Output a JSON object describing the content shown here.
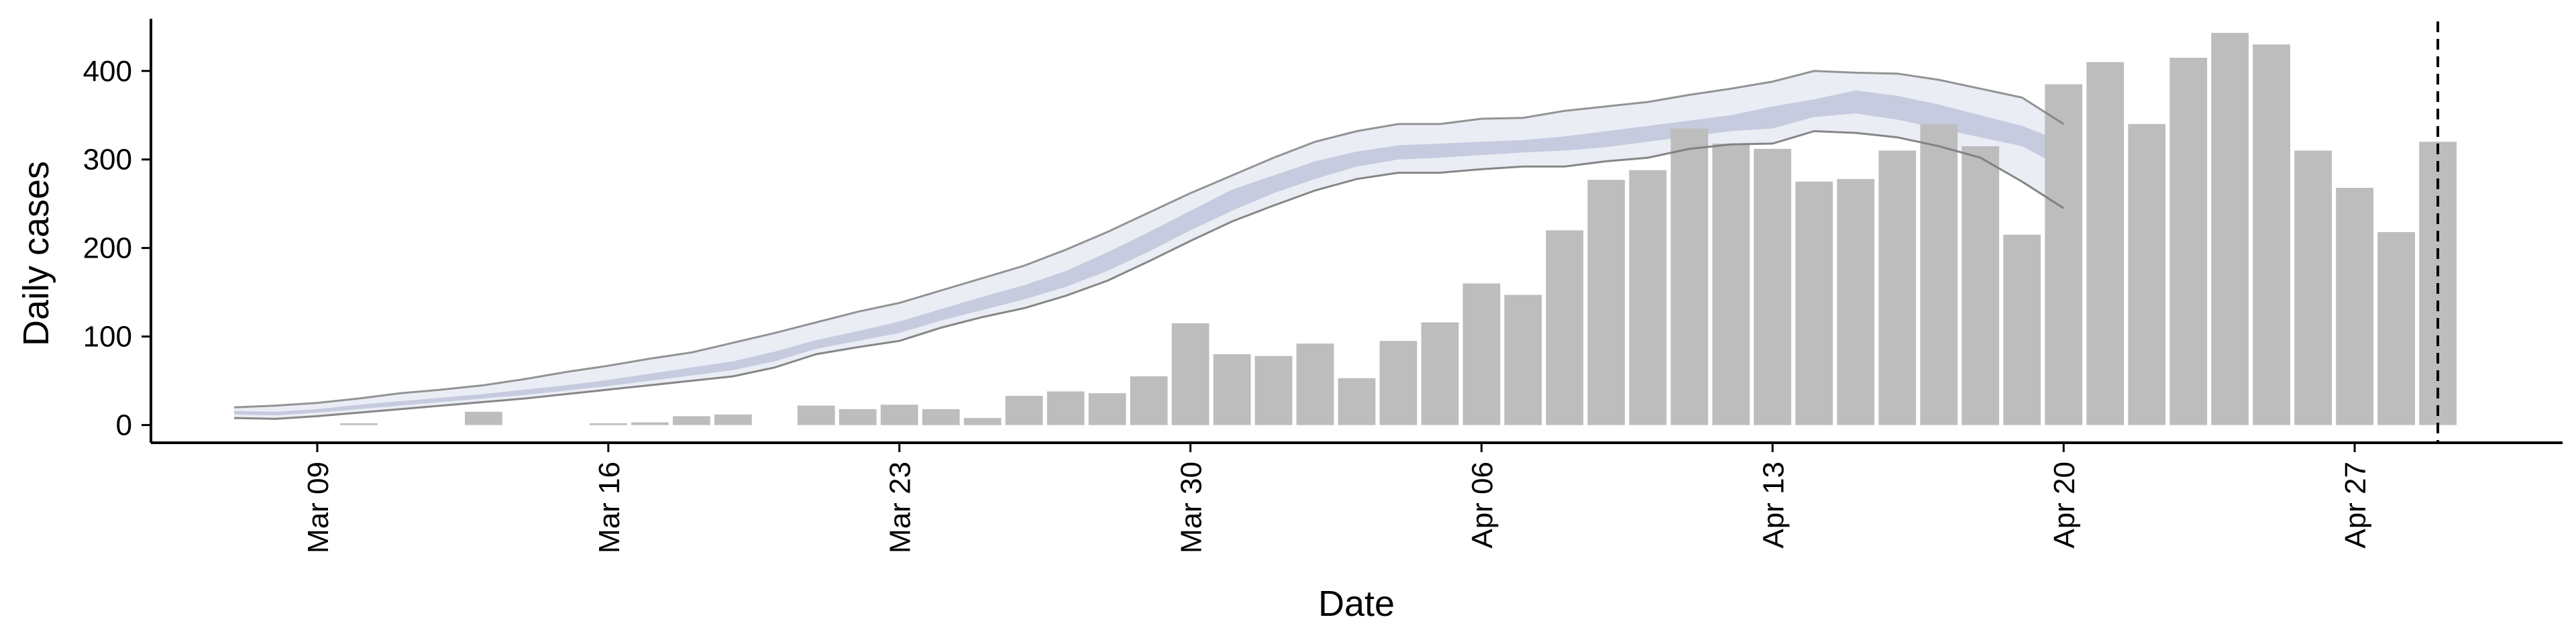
{
  "chart_data": {
    "type": "bar",
    "title": "",
    "xlabel": "Date",
    "ylabel": "Daily cases",
    "ylim": [
      -20,
      465
    ],
    "yticks": [
      0,
      100,
      200,
      300,
      400
    ],
    "x_tick_labels": [
      "Mar 09",
      "Mar 16",
      "Mar 23",
      "Mar 30",
      "Apr 06",
      "Apr 13",
      "Apr 20",
      "Apr 27"
    ],
    "x_tick_dates": [
      "2020-03-09",
      "2020-03-16",
      "2020-03-23",
      "2020-03-30",
      "2020-04-06",
      "2020-04-13",
      "2020-04-20",
      "2020-04-27"
    ],
    "x_range": [
      "2020-03-05",
      "2020-05-02"
    ],
    "vertical_line_date": "2020-04-29",
    "grid": false,
    "colors": {
      "bars": "#bdbdbd",
      "inner_band": "#c6cbdf",
      "outer_band": "#ebedf5",
      "band_edge": "#7a7a7a",
      "reference_line": "#000000"
    },
    "bars": {
      "dates": [
        "2020-03-08",
        "2020-03-09",
        "2020-03-10",
        "2020-03-11",
        "2020-03-12",
        "2020-03-13",
        "2020-03-14",
        "2020-03-15",
        "2020-03-16",
        "2020-03-17",
        "2020-03-18",
        "2020-03-19",
        "2020-03-20",
        "2020-03-21",
        "2020-03-22",
        "2020-03-23",
        "2020-03-24",
        "2020-03-25",
        "2020-03-26",
        "2020-03-27",
        "2020-03-28",
        "2020-03-29",
        "2020-03-30",
        "2020-03-31",
        "2020-04-01",
        "2020-04-02",
        "2020-04-03",
        "2020-04-04",
        "2020-04-05",
        "2020-04-06",
        "2020-04-07",
        "2020-04-08",
        "2020-04-09",
        "2020-04-10",
        "2020-04-11",
        "2020-04-12",
        "2020-04-13",
        "2020-04-14",
        "2020-04-15",
        "2020-04-16",
        "2020-04-17",
        "2020-04-18",
        "2020-04-19",
        "2020-04-20",
        "2020-04-21",
        "2020-04-22",
        "2020-04-23",
        "2020-04-24",
        "2020-04-25",
        "2020-04-26",
        "2020-04-27",
        "2020-04-28",
        "2020-04-29"
      ],
      "values": [
        0,
        0,
        2,
        0,
        0,
        15,
        0,
        0,
        2,
        3,
        10,
        12,
        0,
        22,
        18,
        23,
        18,
        8,
        33,
        38,
        36,
        55,
        115,
        80,
        78,
        92,
        53,
        95,
        116,
        160,
        147,
        220,
        277,
        288,
        335,
        318,
        312,
        275,
        278,
        310,
        340,
        315,
        215,
        385,
        410,
        340,
        415,
        443,
        430,
        310,
        268,
        218,
        320
      ]
    },
    "band": {
      "dates": [
        "2020-03-07",
        "2020-03-08",
        "2020-03-09",
        "2020-03-10",
        "2020-03-11",
        "2020-03-12",
        "2020-03-13",
        "2020-03-14",
        "2020-03-15",
        "2020-03-16",
        "2020-03-17",
        "2020-03-18",
        "2020-03-19",
        "2020-03-20",
        "2020-03-21",
        "2020-03-22",
        "2020-03-23",
        "2020-03-24",
        "2020-03-25",
        "2020-03-26",
        "2020-03-27",
        "2020-03-28",
        "2020-03-29",
        "2020-03-30",
        "2020-03-31",
        "2020-04-01",
        "2020-04-02",
        "2020-04-03",
        "2020-04-04",
        "2020-04-05",
        "2020-04-06",
        "2020-04-07",
        "2020-04-08",
        "2020-04-09",
        "2020-04-10",
        "2020-04-11",
        "2020-04-12",
        "2020-04-13",
        "2020-04-14",
        "2020-04-15",
        "2020-04-16",
        "2020-04-17",
        "2020-04-18",
        "2020-04-19",
        "2020-04-20"
      ],
      "outer_lower": [
        8,
        7,
        10,
        14,
        18,
        22,
        26,
        30,
        35,
        40,
        45,
        50,
        55,
        65,
        80,
        88,
        95,
        110,
        122,
        132,
        146,
        163,
        185,
        208,
        230,
        248,
        265,
        278,
        285,
        285,
        289,
        292,
        292,
        298,
        302,
        312,
        317,
        318,
        332,
        330,
        325,
        315,
        302,
        275,
        245
      ],
      "inner_lower": [
        12,
        11,
        14,
        18,
        22,
        26,
        30,
        34,
        39,
        44,
        50,
        56,
        62,
        72,
        86,
        95,
        104,
        118,
        130,
        142,
        156,
        174,
        196,
        220,
        242,
        262,
        278,
        292,
        300,
        302,
        305,
        308,
        310,
        314,
        320,
        326,
        332,
        335,
        348,
        352,
        345,
        335,
        325,
        315,
        290
      ],
      "inner_upper": [
        16,
        15,
        18,
        23,
        27,
        31,
        35,
        40,
        45,
        51,
        58,
        65,
        72,
        83,
        96,
        106,
        117,
        131,
        145,
        158,
        174,
        195,
        218,
        242,
        266,
        282,
        298,
        309,
        316,
        318,
        320,
        322,
        326,
        332,
        338,
        344,
        350,
        360,
        368,
        378,
        372,
        362,
        350,
        338,
        320
      ],
      "outer_upper": [
        20,
        22,
        25,
        30,
        36,
        40,
        45,
        52,
        60,
        67,
        75,
        82,
        93,
        104,
        116,
        128,
        138,
        152,
        166,
        180,
        198,
        218,
        240,
        262,
        282,
        302,
        320,
        332,
        340,
        340,
        346,
        347,
        355,
        360,
        365,
        373,
        380,
        388,
        400,
        398,
        397,
        390,
        380,
        370,
        340
      ]
    }
  }
}
